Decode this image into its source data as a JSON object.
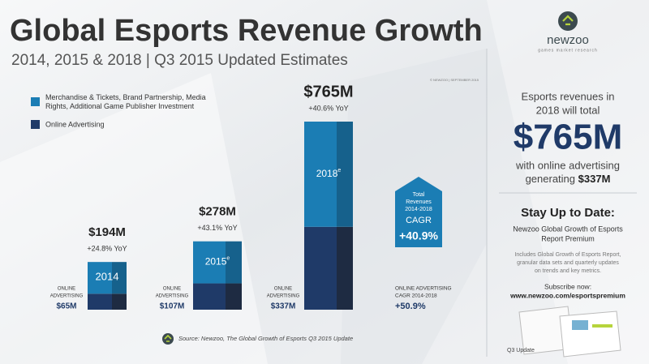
{
  "chart_data": {
    "type": "bar",
    "title": "Global Esports Revenue Growth",
    "subtitle": "2014, 2015 & 2018 | Q3 2015 Updated Estimates",
    "copyright": "© NEWZOO | SEPTEMBER 2015",
    "categories": [
      "2014",
      "2015",
      "2018"
    ],
    "estimate_mark": "e",
    "series": [
      {
        "name": "Online Advertising",
        "color": "#1f3a68",
        "side_color": "#1e2b42",
        "values": [
          65,
          107,
          337
        ],
        "value_labels": [
          "$65M",
          "$107M",
          "$337M"
        ]
      },
      {
        "name": "Merchandise & Tickets, Brand Partnership, Media Rights, Additional Game Publisher Investment",
        "color": "#1b7db4",
        "side_color": "#16618c",
        "values": [
          129,
          171,
          428
        ]
      }
    ],
    "segment_label_lines": [
      "ONLINE",
      "ADVERTISING"
    ],
    "totals": {
      "values": [
        194,
        278,
        765
      ],
      "value_labels": [
        "$194M",
        "$278M",
        "$765M"
      ]
    },
    "growth_labels": [
      "+24.8% YoY",
      "+43.1% YoY",
      "+40.6% YoY"
    ],
    "cagr_box": {
      "lines": [
        "Total",
        "Revenues",
        "2014-2018"
      ],
      "heading": "CAGR",
      "value_label": "+40.9%"
    },
    "online_cagr": {
      "lines": [
        "ONLINE ADVERTISING",
        "CAGR 2014-2018"
      ],
      "value_label": "+50.9%"
    },
    "source": "Source: Newzoo, The Global Growth of Esports Q3 2015 Update"
  },
  "sidebar": {
    "logo": "newzoo",
    "tagline": "games market research",
    "lines": [
      "Esports revenues in",
      "2018 will total"
    ],
    "headline": "$765M",
    "line2": "with online advertising",
    "line3": "generating",
    "line3_value": "$337M",
    "stay": "Stay Up to Date:",
    "report": [
      "Newzoo Global Growth of Esports",
      "Report Premium"
    ],
    "includes": [
      "Includes Global Growth of Esports Report,",
      "granular data sets and quarterly updates",
      "on trends and key metrics."
    ],
    "subscribe": "Subscribe now:",
    "url": "www.newzoo.com/esportspremium",
    "badge": "Q3 Update"
  }
}
